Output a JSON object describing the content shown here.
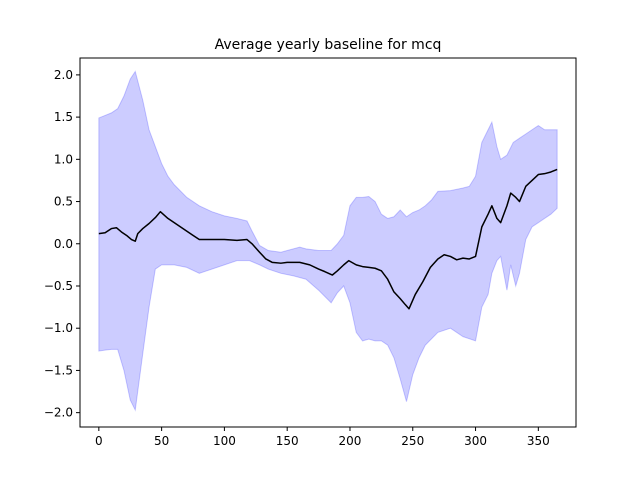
{
  "chart_data": {
    "type": "line",
    "title": "Average yearly baseline for mcq",
    "xlabel": "",
    "ylabel": "",
    "xlim": [
      -15,
      380
    ],
    "ylim": [
      -2.17,
      2.2
    ],
    "xticks": [
      0,
      50,
      100,
      150,
      200,
      250,
      300,
      350
    ],
    "yticks": [
      -2.0,
      -1.5,
      -1.0,
      -0.5,
      0.0,
      0.5,
      1.0,
      1.5,
      2.0
    ],
    "xtick_labels": [
      "0",
      "50",
      "100",
      "150",
      "200",
      "250",
      "300",
      "350"
    ],
    "ytick_labels": [
      "−2.0",
      "−1.5",
      "−1.0",
      "−0.5",
      "0.0",
      "0.5",
      "1.0",
      "1.5",
      "2.0"
    ],
    "grid": false,
    "colors": {
      "line": "#000000",
      "band": "#0000ff",
      "band_alpha": 0.2
    },
    "series": [
      {
        "values": [
          [
            0,
            0.12
          ],
          [
            5,
            0.13
          ],
          [
            10,
            0.18
          ],
          [
            14,
            0.19
          ],
          [
            18,
            0.14
          ],
          [
            22,
            0.1
          ],
          [
            26,
            0.05
          ],
          [
            29,
            0.03
          ],
          [
            31,
            0.12
          ],
          [
            35,
            0.18
          ],
          [
            40,
            0.24
          ],
          [
            45,
            0.31
          ],
          [
            49,
            0.38
          ],
          [
            55,
            0.3
          ],
          [
            60,
            0.25
          ],
          [
            65,
            0.2
          ],
          [
            70,
            0.15
          ],
          [
            75,
            0.1
          ],
          [
            80,
            0.05
          ],
          [
            90,
            0.05
          ],
          [
            100,
            0.05
          ],
          [
            110,
            0.04
          ],
          [
            118,
            0.05
          ],
          [
            122,
            0.0
          ],
          [
            128,
            -0.1
          ],
          [
            133,
            -0.18
          ],
          [
            138,
            -0.22
          ],
          [
            145,
            -0.23
          ],
          [
            150,
            -0.22
          ],
          [
            160,
            -0.22
          ],
          [
            168,
            -0.25
          ],
          [
            175,
            -0.3
          ],
          [
            180,
            -0.33
          ],
          [
            186,
            -0.37
          ],
          [
            190,
            -0.32
          ],
          [
            195,
            -0.25
          ],
          [
            199,
            -0.2
          ],
          [
            205,
            -0.25
          ],
          [
            210,
            -0.27
          ],
          [
            215,
            -0.28
          ],
          [
            220,
            -0.29
          ],
          [
            225,
            -0.32
          ],
          [
            230,
            -0.42
          ],
          [
            235,
            -0.57
          ],
          [
            240,
            -0.65
          ],
          [
            244,
            -0.72
          ],
          [
            247,
            -0.77
          ],
          [
            252,
            -0.6
          ],
          [
            258,
            -0.45
          ],
          [
            264,
            -0.28
          ],
          [
            270,
            -0.18
          ],
          [
            275,
            -0.13
          ],
          [
            280,
            -0.15
          ],
          [
            285,
            -0.19
          ],
          [
            290,
            -0.17
          ],
          [
            295,
            -0.18
          ],
          [
            300,
            -0.15
          ],
          [
            305,
            0.2
          ],
          [
            310,
            0.35
          ],
          [
            313,
            0.45
          ],
          [
            317,
            0.3
          ],
          [
            320,
            0.25
          ],
          [
            325,
            0.45
          ],
          [
            328,
            0.6
          ],
          [
            332,
            0.55
          ],
          [
            335,
            0.5
          ],
          [
            340,
            0.68
          ],
          [
            345,
            0.75
          ],
          [
            350,
            0.82
          ],
          [
            355,
            0.83
          ],
          [
            360,
            0.85
          ],
          [
            365,
            0.88
          ]
        ]
      }
    ],
    "band": {
      "upper": [
        [
          0,
          1.49
        ],
        [
          5,
          1.52
        ],
        [
          10,
          1.55
        ],
        [
          15,
          1.6
        ],
        [
          20,
          1.75
        ],
        [
          25,
          1.95
        ],
        [
          29,
          2.04
        ],
        [
          35,
          1.7
        ],
        [
          40,
          1.35
        ],
        [
          45,
          1.15
        ],
        [
          50,
          0.95
        ],
        [
          55,
          0.8
        ],
        [
          60,
          0.7
        ],
        [
          70,
          0.55
        ],
        [
          80,
          0.45
        ],
        [
          90,
          0.38
        ],
        [
          100,
          0.33
        ],
        [
          110,
          0.3
        ],
        [
          118,
          0.27
        ],
        [
          122,
          0.15
        ],
        [
          128,
          -0.02
        ],
        [
          135,
          -0.08
        ],
        [
          145,
          -0.1
        ],
        [
          150,
          -0.08
        ],
        [
          160,
          -0.04
        ],
        [
          165,
          -0.06
        ],
        [
          175,
          -0.08
        ],
        [
          185,
          -0.08
        ],
        [
          190,
          0.0
        ],
        [
          195,
          0.1
        ],
        [
          200,
          0.45
        ],
        [
          205,
          0.55
        ],
        [
          210,
          0.55
        ],
        [
          215,
          0.56
        ],
        [
          220,
          0.5
        ],
        [
          225,
          0.35
        ],
        [
          230,
          0.3
        ],
        [
          235,
          0.32
        ],
        [
          240,
          0.4
        ],
        [
          245,
          0.32
        ],
        [
          250,
          0.37
        ],
        [
          255,
          0.4
        ],
        [
          260,
          0.45
        ],
        [
          265,
          0.52
        ],
        [
          270,
          0.62
        ],
        [
          280,
          0.63
        ],
        [
          290,
          0.66
        ],
        [
          295,
          0.68
        ],
        [
          300,
          0.8
        ],
        [
          305,
          1.2
        ],
        [
          310,
          1.35
        ],
        [
          313,
          1.44
        ],
        [
          317,
          1.15
        ],
        [
          320,
          1.0
        ],
        [
          325,
          1.05
        ],
        [
          330,
          1.2
        ],
        [
          335,
          1.25
        ],
        [
          340,
          1.3
        ],
        [
          345,
          1.35
        ],
        [
          350,
          1.4
        ],
        [
          355,
          1.35
        ],
        [
          360,
          1.35
        ],
        [
          365,
          1.35
        ]
      ],
      "lower": [
        [
          0,
          -1.27
        ],
        [
          5,
          -1.26
        ],
        [
          10,
          -1.25
        ],
        [
          15,
          -1.25
        ],
        [
          20,
          -1.5
        ],
        [
          25,
          -1.85
        ],
        [
          29,
          -1.97
        ],
        [
          35,
          -1.3
        ],
        [
          40,
          -0.75
        ],
        [
          45,
          -0.3
        ],
        [
          50,
          -0.25
        ],
        [
          60,
          -0.25
        ],
        [
          70,
          -0.28
        ],
        [
          80,
          -0.35
        ],
        [
          90,
          -0.3
        ],
        [
          100,
          -0.25
        ],
        [
          110,
          -0.2
        ],
        [
          120,
          -0.2
        ],
        [
          128,
          -0.25
        ],
        [
          135,
          -0.3
        ],
        [
          145,
          -0.35
        ],
        [
          155,
          -0.38
        ],
        [
          165,
          -0.42
        ],
        [
          175,
          -0.55
        ],
        [
          185,
          -0.7
        ],
        [
          190,
          -0.58
        ],
        [
          195,
          -0.5
        ],
        [
          200,
          -0.7
        ],
        [
          205,
          -1.05
        ],
        [
          210,
          -1.15
        ],
        [
          215,
          -1.13
        ],
        [
          220,
          -1.15
        ],
        [
          225,
          -1.15
        ],
        [
          230,
          -1.2
        ],
        [
          235,
          -1.35
        ],
        [
          240,
          -1.6
        ],
        [
          245,
          -1.87
        ],
        [
          250,
          -1.55
        ],
        [
          255,
          -1.35
        ],
        [
          260,
          -1.2
        ],
        [
          270,
          -1.05
        ],
        [
          280,
          -1.0
        ],
        [
          290,
          -1.1
        ],
        [
          300,
          -1.15
        ],
        [
          305,
          -0.75
        ],
        [
          310,
          -0.6
        ],
        [
          313,
          -0.35
        ],
        [
          317,
          -0.2
        ],
        [
          320,
          -0.15
        ],
        [
          325,
          -0.55
        ],
        [
          328,
          -0.25
        ],
        [
          332,
          -0.5
        ],
        [
          335,
          -0.35
        ],
        [
          340,
          0.05
        ],
        [
          345,
          0.2
        ],
        [
          350,
          0.25
        ],
        [
          355,
          0.3
        ],
        [
          360,
          0.35
        ],
        [
          365,
          0.42
        ]
      ]
    }
  }
}
